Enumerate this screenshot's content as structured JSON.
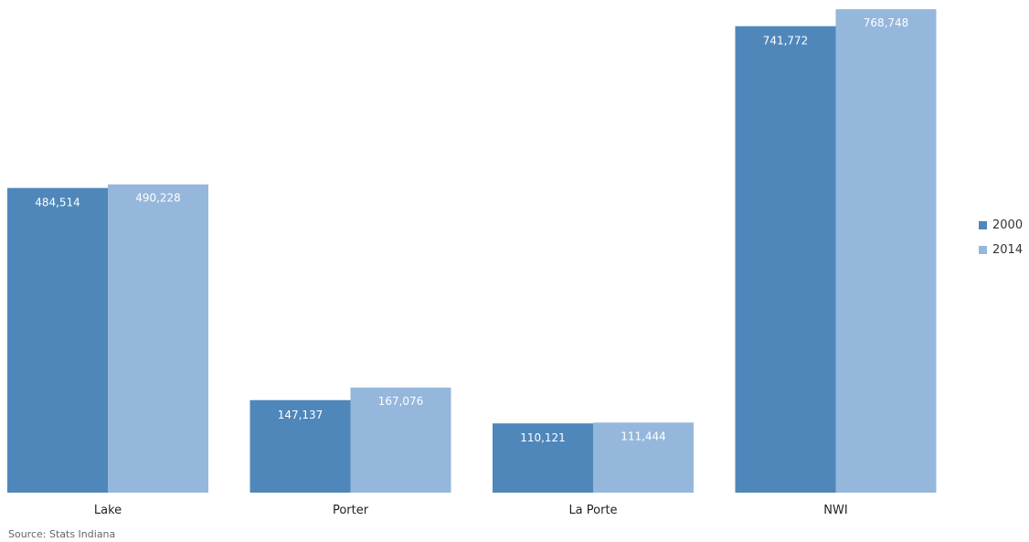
{
  "chart_data": {
    "type": "bar",
    "categories": [
      "Lake",
      "Porter",
      "La Porte",
      "NWI"
    ],
    "series": [
      {
        "name": "2000",
        "values": [
          484514,
          147137,
          110121,
          741772
        ],
        "labels": [
          "484,514",
          "147,137",
          "110,121",
          "741,772"
        ],
        "color": "#4F87BA"
      },
      {
        "name": "2014",
        "values": [
          490228,
          167076,
          111444,
          768748
        ],
        "labels": [
          "490,228",
          "167,076",
          "111,444",
          "768,748"
        ],
        "color": "#95B7DC"
      }
    ],
    "title": "",
    "xlabel": "",
    "ylabel": "",
    "ylim": [
      0,
      800000
    ],
    "grid": false,
    "legend_position": "right"
  },
  "source": "Source: Stats Indiana"
}
